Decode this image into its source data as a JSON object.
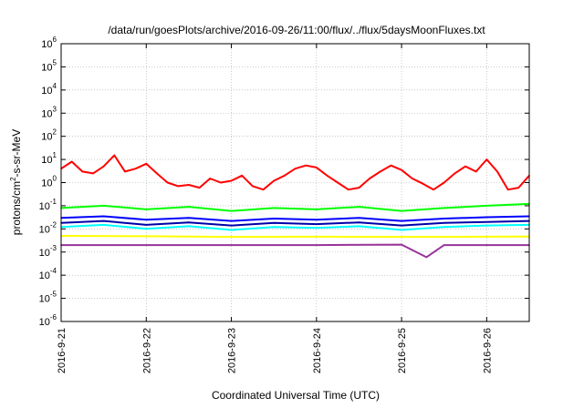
{
  "chart_data": {
    "type": "line",
    "title": "/data/run/goesPlots/archive/2016-09-26/11:00/flux/../flux/5daysMoonFluxes.txt",
    "xlabel": "Coordinated Universal Time (UTC)",
    "ylabel": {
      "prefix": "protons/cm",
      "sup": "2",
      "suffix": "-s-sr-MeV"
    },
    "yscale": "log",
    "ylim": [
      "1e-6",
      "1e6"
    ],
    "ytick_labels": [
      {
        "base": "10",
        "exp": "-6"
      },
      {
        "base": "10",
        "exp": "-5"
      },
      {
        "base": "10",
        "exp": "-4"
      },
      {
        "base": "10",
        "exp": "-3"
      },
      {
        "base": "10",
        "exp": "-2"
      },
      {
        "base": "10",
        "exp": "-1"
      },
      {
        "base": "10",
        "exp": "0"
      },
      {
        "base": "10",
        "exp": "1"
      },
      {
        "base": "10",
        "exp": "2"
      },
      {
        "base": "10",
        "exp": "3"
      },
      {
        "base": "10",
        "exp": "4"
      },
      {
        "base": "10",
        "exp": "5"
      },
      {
        "base": "10",
        "exp": "6"
      }
    ],
    "xlim": [
      "2016-09-21 00:00",
      "2016-09-26 12:00"
    ],
    "xtick_labels": [
      "2016-9-21",
      "2016-9-22",
      "2016-9-23",
      "2016-9-24",
      "2016-9-25",
      "2016-9-26"
    ],
    "grid": true,
    "series": [
      {
        "color": "#ff0000",
        "x": [
          "2016-09-21 00:00",
          "2016-09-21 03:00",
          "2016-09-21 06:00",
          "2016-09-21 09:00",
          "2016-09-21 12:00",
          "2016-09-21 15:00",
          "2016-09-21 18:00",
          "2016-09-21 21:00",
          "2016-09-22 00:00",
          "2016-09-22 03:00",
          "2016-09-22 06:00",
          "2016-09-22 09:00",
          "2016-09-22 12:00",
          "2016-09-22 15:00",
          "2016-09-22 18:00",
          "2016-09-22 21:00",
          "2016-09-23 00:00",
          "2016-09-23 03:00",
          "2016-09-23 06:00",
          "2016-09-23 09:00",
          "2016-09-23 12:00",
          "2016-09-23 15:00",
          "2016-09-23 18:00",
          "2016-09-23 21:00",
          "2016-09-24 00:00",
          "2016-09-24 03:00",
          "2016-09-24 06:00",
          "2016-09-24 09:00",
          "2016-09-24 12:00",
          "2016-09-24 15:00",
          "2016-09-24 18:00",
          "2016-09-24 21:00",
          "2016-09-25 00:00",
          "2016-09-25 03:00",
          "2016-09-25 06:00",
          "2016-09-25 09:00",
          "2016-09-25 12:00",
          "2016-09-25 15:00",
          "2016-09-25 18:00",
          "2016-09-25 21:00",
          "2016-09-26 00:00",
          "2016-09-26 03:00",
          "2016-09-26 06:00",
          "2016-09-26 09:00",
          "2016-09-26 12:00"
        ],
        "y": [
          4.0,
          8.0,
          3.0,
          2.5,
          5.0,
          15.0,
          3.0,
          4.0,
          6.5,
          2.5,
          1.0,
          0.7,
          0.8,
          0.6,
          1.5,
          1.0,
          1.2,
          2.0,
          0.7,
          0.5,
          1.2,
          2.0,
          4.0,
          5.5,
          4.5,
          2.0,
          1.0,
          0.5,
          0.6,
          1.5,
          3.0,
          5.5,
          3.5,
          1.5,
          0.9,
          0.5,
          1.0,
          2.5,
          5.0,
          3.0,
          10.0,
          3.0,
          0.5,
          0.6,
          2.0
        ]
      },
      {
        "color": "#00ff00",
        "x": [
          "2016-09-21 00:00",
          "2016-09-21 12:00",
          "2016-09-22 00:00",
          "2016-09-22 12:00",
          "2016-09-23 00:00",
          "2016-09-23 12:00",
          "2016-09-24 00:00",
          "2016-09-24 12:00",
          "2016-09-25 00:00",
          "2016-09-25 12:00",
          "2016-09-26 00:00",
          "2016-09-26 12:00"
        ],
        "y": [
          0.08,
          0.1,
          0.07,
          0.09,
          0.06,
          0.08,
          0.07,
          0.09,
          0.06,
          0.08,
          0.1,
          0.12
        ]
      },
      {
        "color": "#00ffff",
        "x": [
          "2016-09-21 00:00",
          "2016-09-21 12:00",
          "2016-09-22 00:00",
          "2016-09-22 12:00",
          "2016-09-23 00:00",
          "2016-09-23 12:00",
          "2016-09-24 00:00",
          "2016-09-24 12:00",
          "2016-09-25 00:00",
          "2016-09-25 12:00",
          "2016-09-26 00:00",
          "2016-09-26 12:00"
        ],
        "y": [
          0.012,
          0.015,
          0.01,
          0.013,
          0.009,
          0.012,
          0.011,
          0.013,
          0.009,
          0.012,
          0.014,
          0.015
        ]
      },
      {
        "color": "#0000ff",
        "x": [
          "2016-09-21 00:00",
          "2016-09-21 12:00",
          "2016-09-22 00:00",
          "2016-09-22 12:00",
          "2016-09-23 00:00",
          "2016-09-23 12:00",
          "2016-09-24 00:00",
          "2016-09-24 12:00",
          "2016-09-25 00:00",
          "2016-09-25 12:00",
          "2016-09-26 00:00",
          "2016-09-26 12:00"
        ],
        "y": [
          0.03,
          0.035,
          0.025,
          0.03,
          0.022,
          0.028,
          0.025,
          0.03,
          0.022,
          0.028,
          0.032,
          0.035
        ]
      },
      {
        "color": "#0000aa",
        "x": [
          "2016-09-21 00:00",
          "2016-09-21 12:00",
          "2016-09-22 00:00",
          "2016-09-22 12:00",
          "2016-09-23 00:00",
          "2016-09-23 12:00",
          "2016-09-24 00:00",
          "2016-09-24 12:00",
          "2016-09-25 00:00",
          "2016-09-25 12:00",
          "2016-09-26 00:00",
          "2016-09-26 12:00"
        ],
        "y": [
          0.018,
          0.022,
          0.015,
          0.019,
          0.014,
          0.018,
          0.016,
          0.019,
          0.014,
          0.018,
          0.02,
          0.022
        ]
      },
      {
        "color": "#ffff00",
        "x": [
          "2016-09-21 00:00",
          "2016-09-22 00:00",
          "2016-09-23 00:00",
          "2016-09-24 00:00",
          "2016-09-25 00:00",
          "2016-09-26 00:00",
          "2016-09-26 12:00"
        ],
        "y": [
          0.005,
          0.0048,
          0.0045,
          0.0046,
          0.0045,
          0.0046,
          0.0047
        ]
      },
      {
        "color": "#993399",
        "x": [
          "2016-09-21 00:00",
          "2016-09-22 00:00",
          "2016-09-23 00:00",
          "2016-09-24 00:00",
          "2016-09-25 00:00",
          "2016-09-25 07:00",
          "2016-09-25 12:00",
          "2016-09-26 00:00",
          "2016-09-26 12:00"
        ],
        "y": [
          0.002,
          0.002,
          0.002,
          0.002,
          0.0021,
          0.0006,
          0.002,
          0.002,
          0.002
        ]
      }
    ]
  }
}
